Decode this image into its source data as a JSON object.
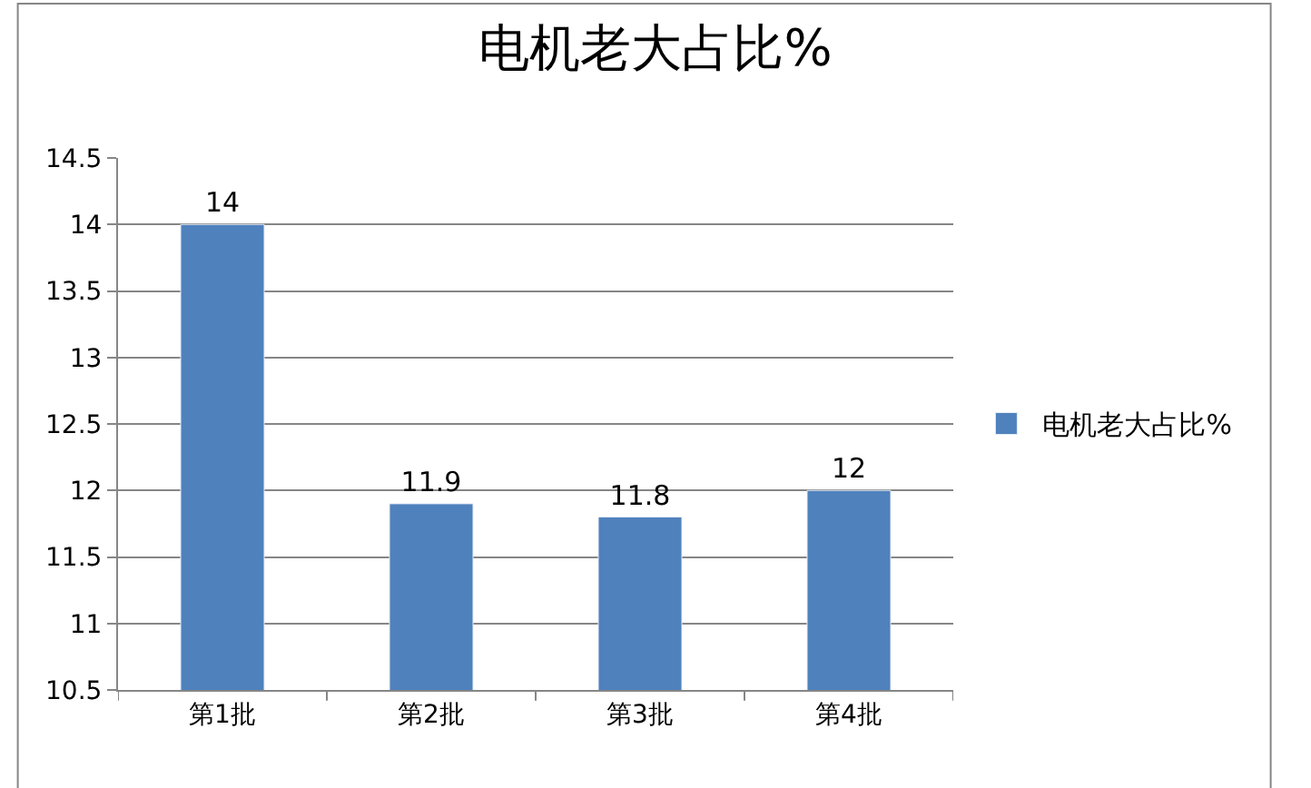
{
  "chart_data": {
    "type": "bar",
    "title": "电机老大占比%",
    "categories": [
      "第1批",
      "第2批",
      "第3批",
      "第4批"
    ],
    "series": [
      {
        "name": "电机老大占比%",
        "color": "#4f81bd",
        "values": [
          14,
          11.9,
          11.8,
          12
        ]
      }
    ],
    "ylim": [
      10.5,
      14.5
    ],
    "yticks": [
      10.5,
      11,
      11.5,
      12,
      12.5,
      13,
      13.5,
      14,
      14.5
    ],
    "grid": "y",
    "legend": "right",
    "data_labels": true
  }
}
